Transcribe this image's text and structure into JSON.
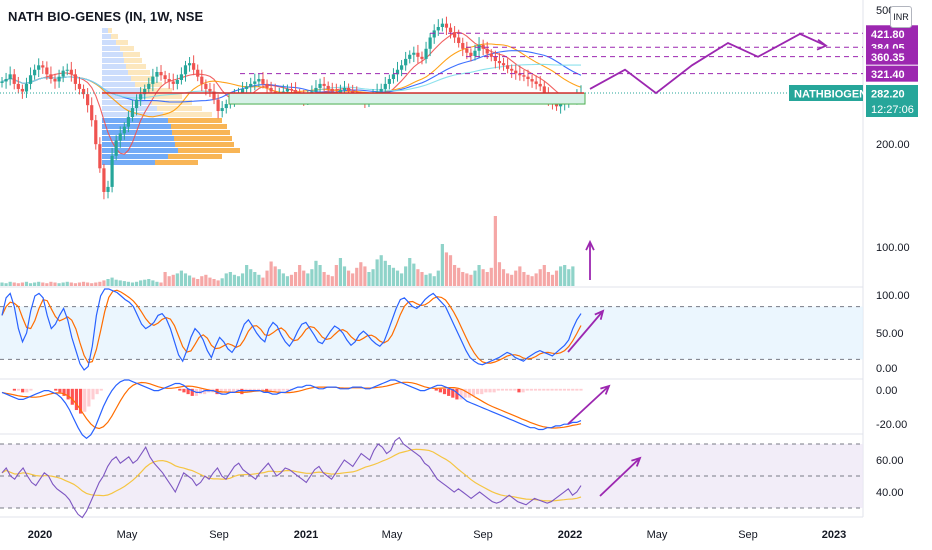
{
  "title": "NATH BIO-GENES (IN, 1W, NSE",
  "currency": "INR",
  "ticker_label": "NATHBIOGEN",
  "last_price": "282.20",
  "countdown": "12:27:06",
  "colors": {
    "up": "#26a69a",
    "down": "#ef5350",
    "purple": "#9c27b0",
    "sma_red": "#f05050",
    "sma_orange": "#ff9800",
    "sma_blue": "#2962ff",
    "sma_cyan": "#80deea",
    "k_line": "#2962ff",
    "d_line": "#ff6d00",
    "rsi": "#7e57c2",
    "rsi_ma": "#f5c542"
  },
  "chart_data": [
    {
      "type": "candlestick",
      "name": "price",
      "scale": "log",
      "y_ticks": [
        "500.00",
        "200.00",
        "100.00"
      ],
      "x_ticks": [
        "2020",
        "May",
        "Sep",
        "2021",
        "May",
        "Sep",
        "2022",
        "May",
        "Sep",
        "2023"
      ],
      "close_series": [
        305,
        310,
        320,
        300,
        290,
        285,
        300,
        318,
        330,
        340,
        335,
        320,
        310,
        305,
        315,
        328,
        330,
        320,
        300,
        290,
        280,
        260,
        235,
        200,
        170,
        145,
        150,
        185,
        205,
        215,
        225,
        240,
        255,
        270,
        280,
        290,
        300,
        315,
        325,
        318,
        310,
        305,
        300,
        308,
        320,
        340,
        345,
        330,
        315,
        300,
        290,
        285,
        270,
        250,
        255,
        262,
        270,
        275,
        282,
        290,
        295,
        300,
        305,
        310,
        300,
        292,
        285,
        280,
        282,
        285,
        290,
        288,
        280,
        275,
        270,
        278,
        285,
        292,
        300,
        296,
        290,
        285,
        282,
        288,
        292,
        286,
        280,
        275,
        270,
        268,
        272,
        278,
        285,
        290,
        300,
        310,
        320,
        330,
        340,
        355,
        365,
        370,
        360,
        355,
        380,
        410,
        430,
        440,
        450,
        438,
        425,
        410,
        395,
        380,
        370,
        362,
        375,
        390,
        380,
        368,
        360,
        350,
        345,
        340,
        332,
        328,
        322,
        318,
        315,
        310,
        305,
        300,
        295,
        280,
        270,
        262,
        258,
        262,
        265,
        270,
        274,
        278,
        282
      ],
      "levels": [
        {
          "label": "421.80",
          "value": 421.8
        },
        {
          "label": "384.05",
          "value": 384.05
        },
        {
          "label": "360.35",
          "value": 360.35
        },
        {
          "label": "321.40",
          "value": 321.4
        }
      ],
      "support_band": [
        262,
        282
      ],
      "resistance_line": 282.2,
      "projection": [
        [
          0,
          290
        ],
        [
          1,
          330
        ],
        [
          2,
          282
        ],
        [
          3,
          340
        ],
        [
          4,
          395
        ],
        [
          5,
          360
        ],
        [
          6,
          420
        ],
        [
          7,
          388
        ]
      ],
      "volume_relative": [
        5,
        4,
        6,
        5,
        4,
        5,
        6,
        4,
        5,
        6,
        5,
        4,
        6,
        5,
        4,
        5,
        6,
        5,
        4,
        5,
        6,
        5,
        4,
        5,
        6,
        8,
        10,
        12,
        9,
        8,
        7,
        6,
        5,
        6,
        8,
        9,
        10,
        8,
        6,
        5,
        20,
        14,
        16,
        18,
        22,
        18,
        15,
        12,
        10,
        14,
        16,
        12,
        10,
        8,
        11,
        18,
        20,
        16,
        14,
        18,
        30,
        24,
        20,
        16,
        12,
        22,
        35,
        28,
        24,
        18,
        14,
        16,
        20,
        30,
        22,
        18,
        24,
        36,
        30,
        20,
        16,
        14,
        30,
        40,
        28,
        22,
        18,
        26,
        34,
        28,
        20,
        24,
        38,
        44,
        36,
        30,
        26,
        22,
        18,
        28,
        40,
        32,
        24,
        20,
        16,
        18,
        14,
        22,
        60,
        48,
        44,
        30,
        26,
        20,
        18,
        16,
        22,
        30,
        24,
        20,
        26,
        100,
        34,
        24,
        18,
        16,
        22,
        28,
        20,
        16,
        14,
        18,
        24,
        30,
        20,
        16,
        22,
        28,
        30,
        24,
        28
      ]
    },
    {
      "type": "line",
      "name": "stochastic",
      "y_ticks": [
        "100.00",
        "50.00",
        "0.00"
      ],
      "band": [
        20,
        80
      ]
    },
    {
      "type": "bar",
      "name": "macd",
      "y_ticks": [
        "0.00",
        "-20.00"
      ]
    },
    {
      "type": "line",
      "name": "rsi",
      "y_ticks": [
        "60.00",
        "40.00"
      ],
      "band": [
        30,
        70
      ]
    }
  ]
}
